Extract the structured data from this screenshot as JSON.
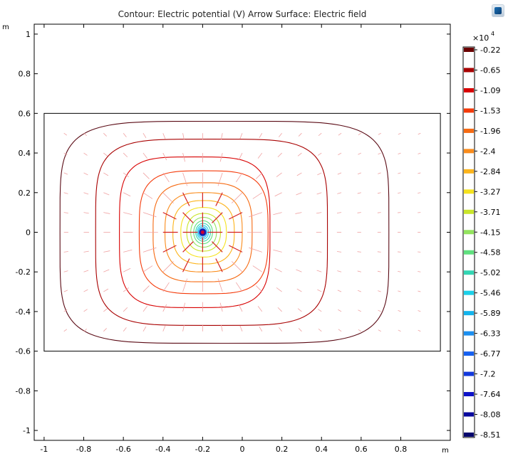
{
  "title": "Contour: Electric potential (V)  Arrow Surface: Electric field",
  "icons": {
    "logo": "comsol-logo-icon"
  },
  "chart_data": {
    "type": "contour",
    "xlabel": "m",
    "ylabel": "m",
    "xlim": [
      -1.05,
      1.05
    ],
    "ylim": [
      -1.05,
      1.05
    ],
    "xticks": [
      "-1",
      "-0.8",
      "-0.6",
      "-0.4",
      "-0.2",
      "0",
      "0.2",
      "0.4",
      "0.6",
      "0.8"
    ],
    "xtick_values": [
      -1,
      -0.8,
      -0.6,
      -0.4,
      -0.2,
      0,
      0.2,
      0.4,
      0.6,
      0.8
    ],
    "yticks": [
      "1",
      "0.8",
      "0.6",
      "0.4",
      "0.2",
      "0",
      "-0.2",
      "-0.4",
      "-0.6",
      "-0.8",
      "-1"
    ],
    "ytick_values": [
      1,
      0.8,
      0.6,
      0.4,
      0.2,
      0,
      -0.2,
      -0.4,
      -0.6,
      -0.8,
      -1
    ],
    "domain_box": {
      "x": [
        -1,
        1
      ],
      "y": [
        -0.6,
        0.6
      ]
    },
    "source_point": [
      -0.2,
      0
    ],
    "colorbar": {
      "multiplier": "×10",
      "exponent": "4",
      "levels": [
        "-0.22",
        "-0.65",
        "-1.09",
        "-1.53",
        "-1.96",
        "-2.4",
        "-2.84",
        "-3.27",
        "-3.71",
        "-4.15",
        "-4.58",
        "-5.02",
        "-5.46",
        "-5.89",
        "-6.33",
        "-6.77",
        "-7.2",
        "-7.64",
        "-8.08",
        "-8.51"
      ],
      "colors": [
        "#6b0000",
        "#a80000",
        "#d80000",
        "#f43a0a",
        "#f66a12",
        "#fa8c1c",
        "#fcb41c",
        "#f5e21e",
        "#c9e52a",
        "#93e35e",
        "#5fe07e",
        "#33d6b3",
        "#1cd0e8",
        "#13b4ec",
        "#1b8ff0",
        "#1560f0",
        "#1238dc",
        "#0d12c8",
        "#08089e",
        "#06066e"
      ]
    },
    "contours": [
      {
        "value": -0.22,
        "rx": [
          -0.92,
          0.74
        ],
        "ry": 0.56
      },
      {
        "value": -0.65,
        "rx": [
          -0.74,
          0.43
        ],
        "ry": 0.47
      },
      {
        "value": -1.09,
        "rx": [
          -0.62,
          0.14
        ],
        "ry": 0.38
      },
      {
        "value": -1.53,
        "rx": [
          -0.52,
          0.13
        ],
        "ry": 0.31
      },
      {
        "value": -1.96,
        "rx": [
          -0.45,
          0.05
        ],
        "ry": 0.25
      },
      {
        "value": -2.4,
        "rx": [
          -0.39,
          0.0
        ],
        "ry": 0.2
      },
      {
        "value": -2.84,
        "rx": [
          -0.35,
          -0.04
        ],
        "ry": 0.16
      },
      {
        "value": -3.27,
        "rx": [
          -0.31,
          -0.08
        ],
        "ry": 0.125
      },
      {
        "value": -3.71,
        "rx": [
          -0.28,
          -0.11
        ],
        "ry": 0.095
      },
      {
        "value": -4.15,
        "rx": [
          -0.26,
          -0.13
        ],
        "ry": 0.075
      },
      {
        "value": -4.58,
        "rx": [
          -0.245,
          -0.15
        ],
        "ry": 0.058
      },
      {
        "value": -5.02,
        "rx": [
          -0.235,
          -0.16
        ],
        "ry": 0.045
      },
      {
        "value": -5.46,
        "rx": [
          -0.228,
          -0.17
        ],
        "ry": 0.035
      },
      {
        "value": -5.89,
        "rx": [
          -0.222,
          -0.178
        ],
        "ry": 0.027
      },
      {
        "value": -6.33,
        "rx": [
          -0.217,
          -0.183
        ],
        "ry": 0.02
      },
      {
        "value": -6.77,
        "rx": [
          -0.213,
          -0.187
        ],
        "ry": 0.015
      },
      {
        "value": -7.2,
        "rx": [
          -0.21,
          -0.19
        ],
        "ry": 0.011
      },
      {
        "value": -7.64,
        "rx": [
          -0.207,
          -0.193
        ],
        "ry": 0.008
      },
      {
        "value": -8.08,
        "rx": [
          -0.204,
          -0.196
        ],
        "ry": 0.005
      }
    ]
  }
}
